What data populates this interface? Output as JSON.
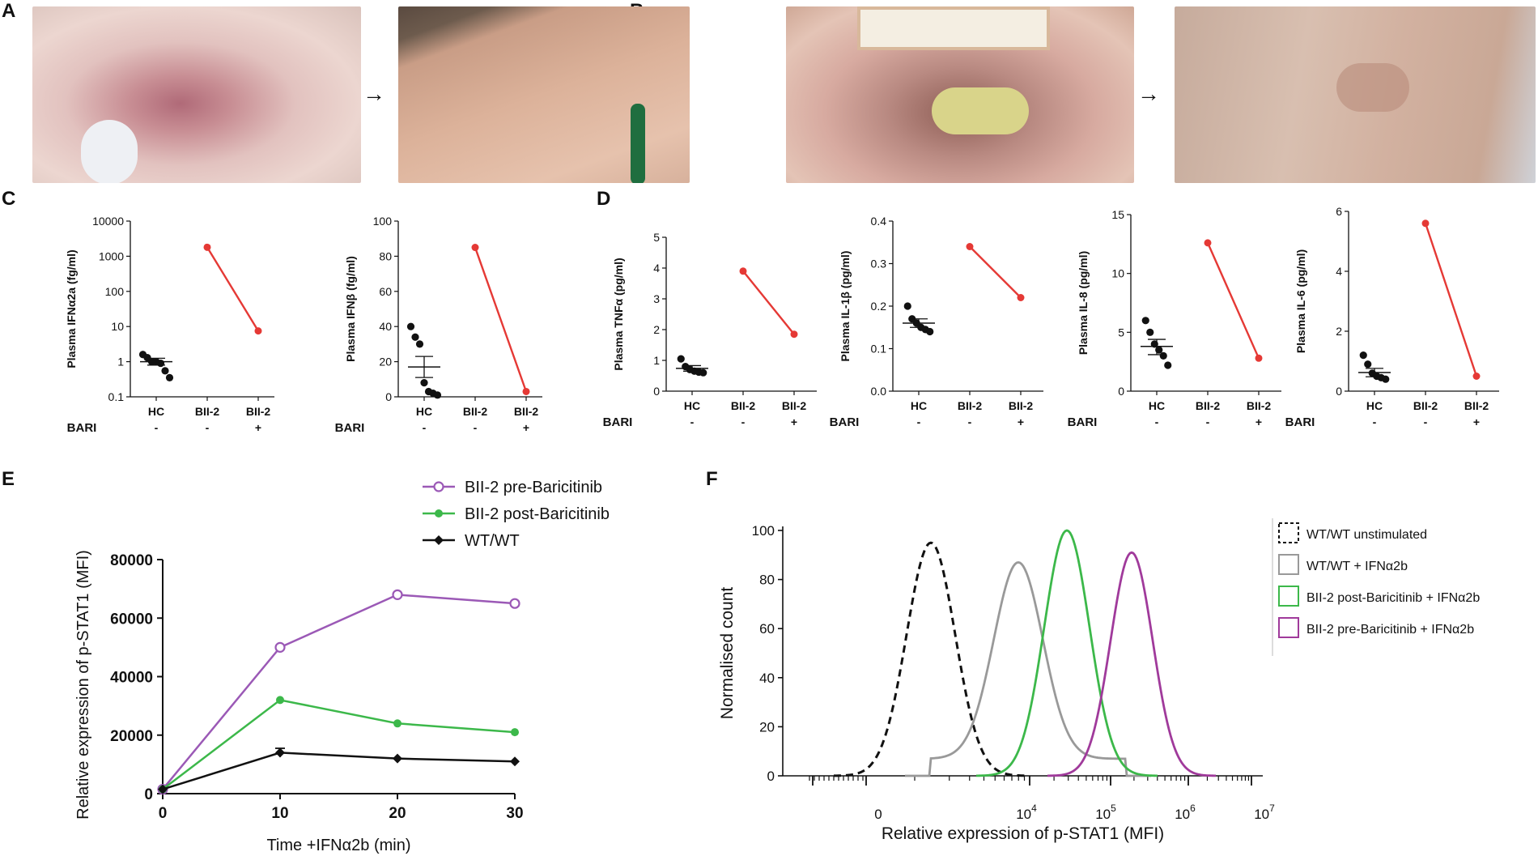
{
  "panels": {
    "A": {
      "letter": "A"
    },
    "B": {
      "letter": "B"
    },
    "C": {
      "letter": "C"
    },
    "D": {
      "letter": "D"
    },
    "E": {
      "letter": "E"
    },
    "F": {
      "letter": "F"
    }
  },
  "photos": {
    "A": {
      "arrow": "→"
    },
    "B": {
      "arrow": "→"
    }
  },
  "colors": {
    "purple": "#9b59b6",
    "green": "#3cb84a",
    "black": "#111111",
    "red": "#e53935",
    "grey": "#999999",
    "magenta": "#a03a9b"
  },
  "chart_data": [
    {
      "id": "C1",
      "type": "scatter",
      "ylabel": "Plasma IFNα2a (fg/ml)",
      "yscale": "log",
      "ylim": [
        0.1,
        10000
      ],
      "yticks": [
        "0.1",
        "1",
        "10",
        "100",
        "1000",
        "10000"
      ],
      "categories": [
        "HC",
        "BII-2",
        "BII-2"
      ],
      "bari_label": "BARI",
      "bari": [
        "-",
        "-",
        "+"
      ],
      "hc_points": [
        1.6,
        1.3,
        1.0,
        1.0,
        0.9,
        0.55,
        0.35
      ],
      "hc_mean": 1.0,
      "hc_sem": [
        0.8,
        1.25
      ],
      "patient_line": [
        1800,
        7.5
      ]
    },
    {
      "id": "C2",
      "type": "scatter",
      "ylabel": "Plasma IFNβ (fg/ml)",
      "yscale": "linear",
      "ylim": [
        0,
        100
      ],
      "yticks": [
        "0",
        "20",
        "40",
        "60",
        "80",
        "100"
      ],
      "categories": [
        "HC",
        "BII-2",
        "BII-2"
      ],
      "bari_label": "BARI",
      "bari": [
        "-",
        "-",
        "+"
      ],
      "hc_points": [
        40,
        34,
        30,
        8,
        3,
        2,
        1
      ],
      "hc_mean": 17,
      "hc_sem": [
        11,
        23
      ],
      "patient_line": [
        85,
        3
      ]
    },
    {
      "id": "D1",
      "type": "scatter",
      "ylabel": "Plasma TNFα (pg/ml)",
      "yscale": "linear",
      "ylim": [
        0,
        5
      ],
      "yticks": [
        "0",
        "1",
        "2",
        "3",
        "4",
        "5"
      ],
      "categories": [
        "HC",
        "BII-2",
        "BII-2"
      ],
      "bari_label": "BARI",
      "bari": [
        "-",
        "-",
        "+"
      ],
      "hc_points": [
        1.05,
        0.8,
        0.7,
        0.65,
        0.62,
        0.6
      ],
      "hc_mean": 0.74,
      "hc_sem": [
        0.65,
        0.83
      ],
      "patient_line": [
        3.9,
        1.85
      ]
    },
    {
      "id": "D2",
      "type": "scatter",
      "ylabel": "Plasma IL-1β (pg/ml)",
      "yscale": "linear",
      "ylim": [
        0,
        0.4
      ],
      "yticks": [
        "0.0",
        "0.1",
        "0.2",
        "0.3",
        "0.4"
      ],
      "categories": [
        "HC",
        "BII-2",
        "BII-2"
      ],
      "bari_label": "BARI",
      "bari": [
        "-",
        "-",
        "+"
      ],
      "hc_points": [
        0.2,
        0.17,
        0.16,
        0.15,
        0.145,
        0.14
      ],
      "hc_mean": 0.16,
      "hc_sem": [
        0.15,
        0.17
      ],
      "patient_line": [
        0.34,
        0.22
      ]
    },
    {
      "id": "D3",
      "type": "scatter",
      "ylabel": "Plasma IL-8 (pg/ml)",
      "yscale": "linear",
      "ylim": [
        0,
        15
      ],
      "yticks": [
        "0",
        "5",
        "10",
        "15"
      ],
      "categories": [
        "HC",
        "BII-2",
        "BII-2"
      ],
      "bari_label": "BARI",
      "bari": [
        "-",
        "-",
        "+"
      ],
      "hc_points": [
        6.0,
        5.0,
        4.0,
        3.5,
        3.0,
        2.2
      ],
      "hc_mean": 3.8,
      "hc_sem": [
        3.1,
        4.4
      ],
      "patient_line": [
        12.6,
        2.8
      ]
    },
    {
      "id": "D4",
      "type": "scatter",
      "ylabel": "Plasma IL-6 (pg/ml)",
      "yscale": "linear",
      "ylim": [
        0,
        6
      ],
      "yticks": [
        "0",
        "2",
        "4",
        "6"
      ],
      "categories": [
        "HC",
        "BII-2",
        "BII-2"
      ],
      "bari_label": "BARI",
      "bari": [
        "-",
        "-",
        "+"
      ],
      "hc_points": [
        1.2,
        0.9,
        0.6,
        0.5,
        0.45,
        0.4
      ],
      "hc_mean": 0.62,
      "hc_sem": [
        0.48,
        0.76
      ],
      "patient_line": [
        5.6,
        0.5
      ]
    },
    {
      "id": "E",
      "type": "line",
      "xlabel": "Time +IFNα2b (min)",
      "ylabel": "Relative expression of p-STAT1 (MFI)",
      "xlim": [
        0,
        30
      ],
      "ylim": [
        0,
        80000
      ],
      "x": [
        0,
        10,
        20,
        30
      ],
      "xticks": [
        "0",
        "10",
        "20",
        "30"
      ],
      "yticks": [
        "0",
        "20000",
        "40000",
        "60000",
        "80000"
      ],
      "series": [
        {
          "name": "BII-2 pre-Baricitinib",
          "values": [
            1500,
            50000,
            68000,
            65000
          ],
          "color": "#9b59b6",
          "marker": "open-circle"
        },
        {
          "name": "BII-2 post-Baricitinib",
          "values": [
            1500,
            32000,
            24000,
            21000
          ],
          "color": "#3cb84a",
          "marker": "filled-circle"
        },
        {
          "name": "WT/WT",
          "values": [
            1500,
            14000,
            12000,
            11000
          ],
          "color": "#111111",
          "marker": "diamond"
        }
      ]
    },
    {
      "id": "F",
      "type": "area",
      "xlabel": "Relative expression of p-STAT1 (MFI)",
      "ylabel": "Normalised count",
      "xscale": "biexponential",
      "ylim": [
        0,
        100
      ],
      "yticks": [
        "0",
        "20",
        "40",
        "60",
        "80",
        "100"
      ],
      "xticks": [
        {
          "base": "0",
          "exp": ""
        },
        {
          "base": "10",
          "exp": "4"
        },
        {
          "base": "10",
          "exp": "5"
        },
        {
          "base": "10",
          "exp": "6"
        },
        {
          "base": "10",
          "exp": "7"
        }
      ],
      "series": [
        {
          "name": "WT/WT unstimulated",
          "color": "#111111",
          "style": "dashed",
          "peak": 95
        },
        {
          "name": "WT/WT + IFNα2b",
          "color": "#999999",
          "style": "solid",
          "peak": 87
        },
        {
          "name": "BII-2 post-Baricitinib + IFNα2b",
          "color": "#3cb84a",
          "style": "solid",
          "peak": 100
        },
        {
          "name": "BII-2 pre-Baricitinib + IFNα2b",
          "color": "#a03a9b",
          "style": "solid",
          "peak": 91
        }
      ]
    }
  ]
}
